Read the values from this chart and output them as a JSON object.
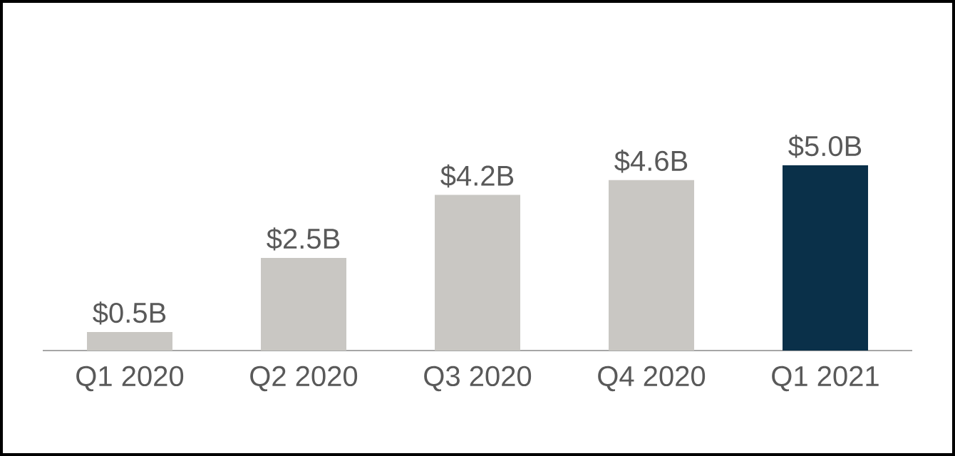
{
  "chart_data": {
    "type": "bar",
    "categories": [
      "Q1 2020",
      "Q2 2020",
      "Q3 2020",
      "Q4 2020",
      "Q1 2021"
    ],
    "values": [
      0.5,
      2.5,
      4.2,
      4.6,
      5.0
    ],
    "value_labels": [
      "$0.5B",
      "$2.5B",
      "$4.2B",
      "$4.6B",
      "$5.0B"
    ],
    "colors": [
      "#c9c7c3",
      "#c9c7c3",
      "#c9c7c3",
      "#c9c7c3",
      "#0a3049"
    ]
  }
}
